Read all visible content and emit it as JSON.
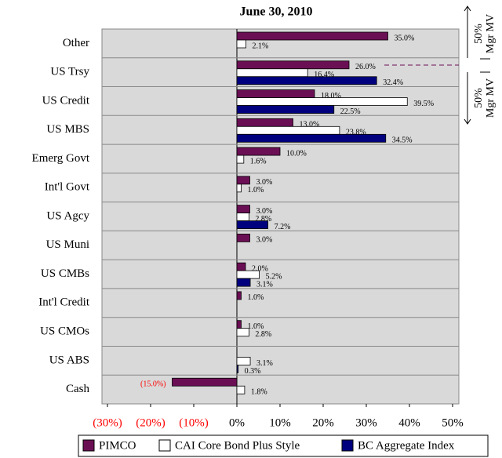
{
  "chart_data": {
    "type": "bar",
    "orientation": "horizontal",
    "title": "June 30, 2010",
    "categories": [
      "Other",
      "US Trsy",
      "US Credit",
      "US MBS",
      "Emerg Govt",
      "Int'l Govt",
      "US Agcy",
      "US Muni",
      "US CMBs",
      "Int'l Credit",
      "US CMOs",
      "US ABS",
      "Cash"
    ],
    "series": [
      {
        "name": "PIMCO",
        "color": "#6b0f55",
        "values": [
          35.0,
          26.0,
          18.0,
          13.0,
          10.0,
          3.0,
          3.0,
          3.0,
          2.0,
          1.0,
          1.0,
          null,
          -15.0
        ],
        "value_labels": [
          "35.0%",
          "26.0%",
          "18.0%",
          "13.0%",
          "10.0%",
          "3.0%",
          "3.0%",
          "3.0%",
          "2.0%",
          "1.0%",
          "1.0%",
          null,
          "(15.0%)"
        ]
      },
      {
        "name": "CAI Core Bond Plus Style",
        "color": "#ffffff",
        "values": [
          2.1,
          16.4,
          39.5,
          23.8,
          1.6,
          1.0,
          2.8,
          null,
          5.2,
          null,
          2.8,
          3.1,
          1.8
        ],
        "value_labels": [
          "2.1%",
          "16.4%",
          "39.5%",
          "23.8%",
          "1.6%",
          "1.0%",
          "2.8%",
          null,
          "5.2%",
          null,
          "2.8%",
          "3.1%",
          "1.8%"
        ]
      },
      {
        "name": "BC Aggregate Index",
        "color": "#00007f",
        "values": [
          null,
          32.4,
          22.5,
          34.5,
          null,
          null,
          7.2,
          null,
          3.1,
          null,
          null,
          0.3,
          null
        ],
        "value_labels": [
          null,
          "32.4%",
          "22.5%",
          "34.5%",
          null,
          null,
          "7.2%",
          null,
          "3.1%",
          null,
          null,
          "0.3%",
          null
        ]
      }
    ],
    "xlim": [
      -30,
      50
    ],
    "xticks": [
      {
        "value": -30,
        "label": "(30%)"
      },
      {
        "value": -20,
        "label": "(20%)"
      },
      {
        "value": -10,
        "label": "(10%)"
      },
      {
        "value": 0,
        "label": "0%"
      },
      {
        "value": 10,
        "label": "10%"
      },
      {
        "value": 20,
        "label": "20%"
      },
      {
        "value": 30,
        "label": "30%"
      },
      {
        "value": 40,
        "label": "40%"
      },
      {
        "value": 50,
        "label": "50%"
      }
    ],
    "negative_color": "#ff0000",
    "annotations": [
      [
        "50%",
        "Mgr MV"
      ],
      [
        "50%",
        "Mgr MV"
      ]
    ]
  }
}
